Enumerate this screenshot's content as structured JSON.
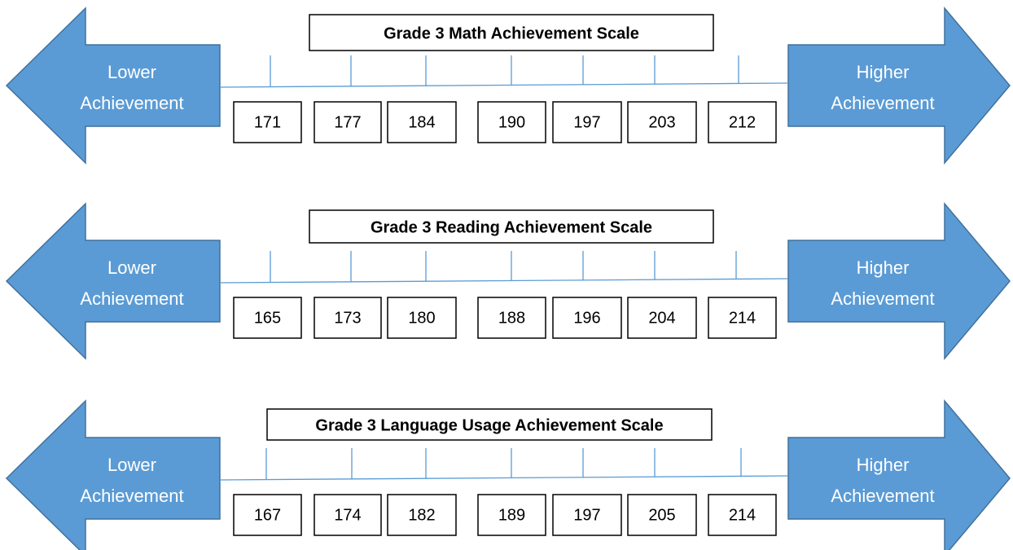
{
  "scales": [
    {
      "title": "Grade 3 Math Achievement Scale",
      "left_label": [
        "Lower",
        "Achievement"
      ],
      "right_label": [
        "Higher",
        "Achievement"
      ],
      "values": [
        171,
        177,
        184,
        190,
        197,
        203,
        212
      ]
    },
    {
      "title": "Grade 3 Reading Achievement Scale",
      "left_label": [
        "Lower",
        "Achievement"
      ],
      "right_label": [
        "Higher",
        "Achievement"
      ],
      "values": [
        165,
        173,
        180,
        188,
        196,
        204,
        214
      ]
    },
    {
      "title": "Grade 3 Language Usage Achievement Scale",
      "left_label": [
        "Lower",
        "Achievement"
      ],
      "right_label": [
        "Higher",
        "Achievement"
      ],
      "values": [
        167,
        174,
        182,
        189,
        197,
        205,
        214
      ]
    }
  ]
}
